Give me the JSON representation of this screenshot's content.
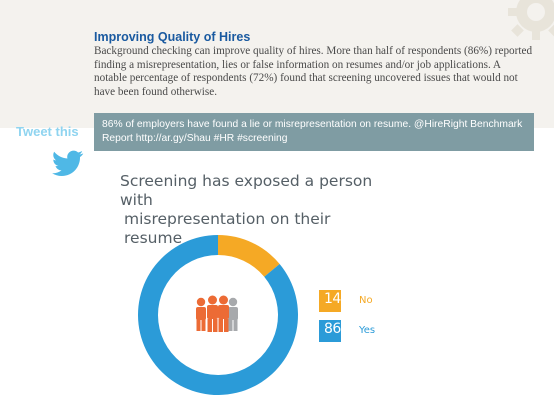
{
  "header": {
    "title": "Improving Quality of Hires",
    "body": "Background checking can improve quality of hires. More than half of respondents (86%) reported finding a misrepresentation, lies or false information on resumes and/or job applications. A notable percentage of respondents (72%) found that screening uncovered issues that would not have been found otherwise."
  },
  "tweet": {
    "label": "Tweet this",
    "text_line1": "86% of employers have found a lie or misrepresentation on resume. @HireRight Benchmark",
    "text_line2": "Report http://ar.gy/Shau #HR #screening"
  },
  "chart_data": {
    "type": "pie",
    "title_line1": "Screening has exposed a person with",
    "title_line2": "misrepresentation on their resume",
    "slices": [
      {
        "label": "No",
        "value": 14,
        "value_label": "14%",
        "color": "#f5a925"
      },
      {
        "label": "Yes",
        "value": 86,
        "value_label": "86%",
        "color": "#2b9bd8"
      }
    ],
    "center_icon": "people-group-icon",
    "legend_position": "right"
  },
  "colors": {
    "accent_blue": "#2b9bd8",
    "accent_orange": "#f5a925",
    "icon_orange": "#ec6b35",
    "icon_gray": "#a7a9ac"
  }
}
